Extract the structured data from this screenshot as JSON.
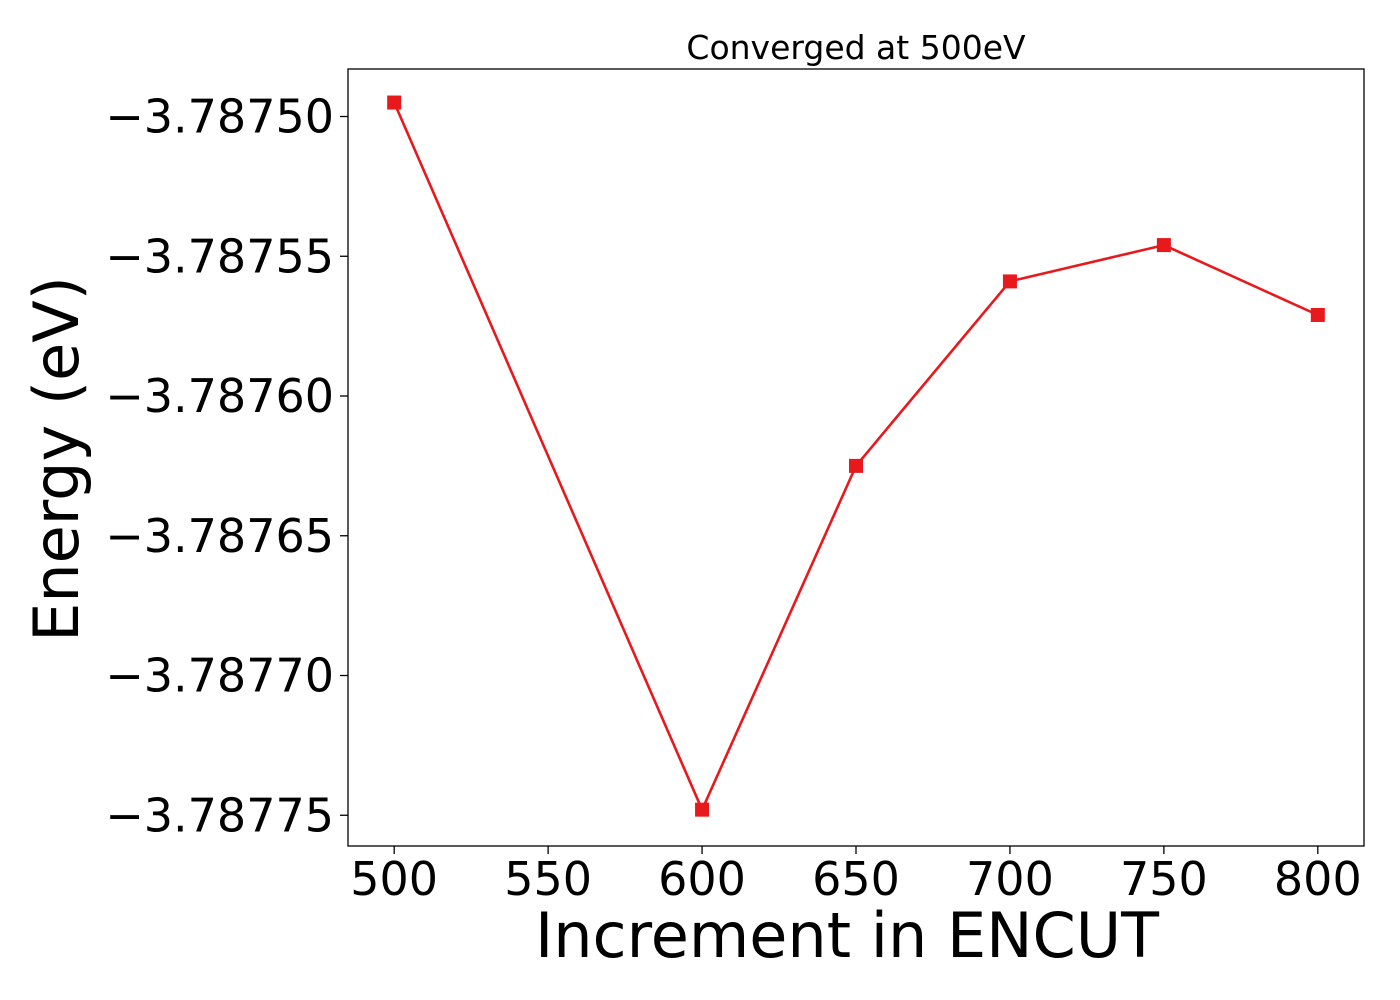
{
  "chart_data": {
    "type": "line",
    "title": "Converged at 500eV",
    "xlabel": "Increment in ENCUT",
    "ylabel": "Energy (eV)",
    "x": [
      500,
      600,
      650,
      700,
      750,
      800
    ],
    "series": [
      {
        "values": [
          -3.787495,
          -3.787748,
          -3.787625,
          -3.787559,
          -3.787546,
          -3.787571
        ],
        "color": "#e8191d",
        "marker": "square"
      }
    ],
    "xlim": [
      485,
      815
    ],
    "ylim": [
      -3.787761,
      -3.787483
    ],
    "xticks": [
      500,
      550,
      600,
      650,
      700,
      750,
      800
    ],
    "xtick_labels": [
      "500",
      "550",
      "600",
      "650",
      "700",
      "750",
      "800"
    ],
    "yticks": [
      -3.7875,
      -3.78755,
      -3.7876,
      -3.78765,
      -3.7877,
      -3.78775
    ],
    "ytick_labels": [
      "−3.78750",
      "−3.78755",
      "−3.78760",
      "−3.78765",
      "−3.78770",
      "−3.78775"
    ],
    "grid": false,
    "legend": "none"
  }
}
